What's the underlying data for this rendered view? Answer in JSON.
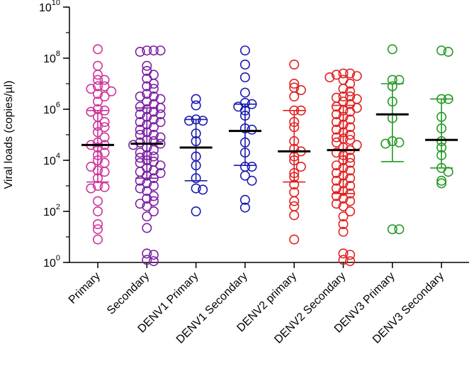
{
  "chart_data": {
    "type": "scatter",
    "title": "",
    "xlabel": "",
    "ylabel": "Viral loads (copies/µl)",
    "yscale": "log10",
    "ylim_exponent": [
      0,
      10
    ],
    "yticks": [
      {
        "base": "10",
        "exp": "0"
      },
      {
        "base": "10",
        "exp": "2"
      },
      {
        "base": "10",
        "exp": "4"
      },
      {
        "base": "10",
        "exp": "6"
      },
      {
        "base": "10",
        "exp": "8"
      },
      {
        "base": "10",
        "exp": "10"
      }
    ],
    "categories": [
      "Primary",
      "Secondary",
      "DENV1 Primary",
      "DENV1 Secondary",
      "DENV2 primary",
      "DENV2 Secondary",
      "DENV3 Primary",
      "DENV3 Secondary"
    ],
    "series": [
      {
        "name": "Primary",
        "color": "#cc3399",
        "median_exp": 4.6,
        "q1_exp": 3.15,
        "q3_exp": 5.95,
        "points_exp": [
          8.35,
          7.7,
          7.35,
          7.15,
          7.15,
          6.9,
          6.9,
          6.8,
          6.7,
          6.6,
          6.5,
          6.3,
          6.0,
          5.95,
          5.9,
          5.7,
          5.5,
          5.35,
          5.3,
          5.1,
          4.9,
          4.7,
          4.6,
          4.6,
          4.5,
          4.3,
          4.2,
          4.0,
          3.9,
          3.75,
          3.6,
          3.55,
          3.3,
          3.0,
          2.95,
          2.9,
          2.4,
          2.0,
          1.5,
          1.3,
          0.9
        ]
      },
      {
        "name": "Secondary",
        "color": "#7b1fa2",
        "median_exp": 4.65,
        "q1_exp": 3.3,
        "q3_exp": 6.05,
        "points_exp": [
          8.3,
          8.3,
          8.25,
          8.3,
          7.7,
          7.5,
          7.35,
          7.2,
          7.0,
          6.9,
          6.8,
          6.6,
          6.5,
          6.5,
          6.4,
          6.3,
          6.2,
          6.1,
          6.05,
          6.0,
          5.9,
          5.8,
          5.8,
          5.7,
          5.6,
          5.5,
          5.5,
          5.4,
          5.3,
          5.2,
          5.1,
          5.0,
          5.0,
          4.9,
          4.8,
          4.75,
          4.7,
          4.65,
          4.6,
          4.5,
          4.4,
          4.3,
          4.2,
          4.15,
          4.1,
          4.0,
          3.95,
          3.9,
          3.8,
          3.7,
          3.6,
          3.55,
          3.5,
          3.4,
          3.3,
          3.2,
          3.1,
          3.0,
          2.9,
          2.8,
          2.6,
          2.5,
          2.4,
          2.3,
          2.2,
          2.0,
          1.8,
          1.35,
          0.35,
          0.3,
          0.1,
          0.05
        ]
      },
      {
        "name": "DENV1 Primary",
        "color": "#1a1ab0",
        "median_exp": 4.5,
        "q1_exp": 3.2,
        "q3_exp": 5.6,
        "points_exp": [
          6.4,
          6.15,
          5.6,
          5.55,
          5.55,
          5.05,
          4.75,
          4.15,
          3.8,
          3.3,
          2.9,
          2.85,
          2.0
        ]
      },
      {
        "name": "DENV1 Secondary",
        "color": "#1a1ab0",
        "median_exp": 5.15,
        "q1_exp": 3.8,
        "q3_exp": 6.2,
        "points_exp": [
          8.3,
          7.75,
          7.25,
          6.65,
          6.25,
          6.2,
          6.1,
          5.95,
          5.75,
          5.25,
          5.2,
          4.7,
          4.3,
          3.75,
          3.75,
          3.4,
          3.2,
          2.45,
          2.15
        ]
      },
      {
        "name": "DENV2 primary",
        "color": "#e02020",
        "median_exp": 4.35,
        "q1_exp": 3.15,
        "q3_exp": 5.95,
        "points_exp": [
          7.75,
          7.0,
          6.85,
          6.75,
          6.5,
          5.95,
          5.95,
          5.5,
          5.3,
          4.75,
          4.45,
          4.35,
          4.15,
          4.0,
          3.75,
          3.5,
          3.35,
          3.05,
          2.75,
          2.4,
          2.2,
          1.85,
          0.9
        ]
      },
      {
        "name": "DENV2 Secondary",
        "color": "#e02020",
        "median_exp": 4.4,
        "q1_exp": 2.7,
        "q3_exp": 6.15,
        "points_exp": [
          7.4,
          7.4,
          7.35,
          7.3,
          7.25,
          7.15,
          7.0,
          6.8,
          6.7,
          6.5,
          6.5,
          6.45,
          6.4,
          6.3,
          6.2,
          6.1,
          6.05,
          5.95,
          5.9,
          5.8,
          5.7,
          5.6,
          5.5,
          5.4,
          5.3,
          5.2,
          5.1,
          5.0,
          4.9,
          4.85,
          4.8,
          4.7,
          4.6,
          4.5,
          4.4,
          4.3,
          4.2,
          4.1,
          4.0,
          3.9,
          3.8,
          3.7,
          3.6,
          3.5,
          3.4,
          3.3,
          3.2,
          3.1,
          3.0,
          2.9,
          2.8,
          2.7,
          2.6,
          2.5,
          2.4,
          2.3,
          2.2,
          2.0,
          1.8,
          1.5,
          1.2,
          0.35,
          0.3,
          0.1,
          0.05
        ]
      },
      {
        "name": "DENV3 Primary",
        "color": "#229922",
        "median_exp": 5.8,
        "q1_exp": 3.95,
        "q3_exp": 7.0,
        "points_exp": [
          8.35,
          7.15,
          7.15,
          6.9,
          6.3,
          5.65,
          4.75,
          4.7,
          4.65,
          1.3,
          1.3
        ]
      },
      {
        "name": "DENV3 Secondary",
        "color": "#229922",
        "median_exp": 4.8,
        "q1_exp": 3.7,
        "q3_exp": 6.4,
        "points_exp": [
          8.3,
          8.25,
          6.4,
          6.4,
          5.7,
          5.25,
          4.75,
          4.5,
          4.2,
          3.7,
          3.55,
          3.2,
          3.1
        ]
      }
    ]
  }
}
